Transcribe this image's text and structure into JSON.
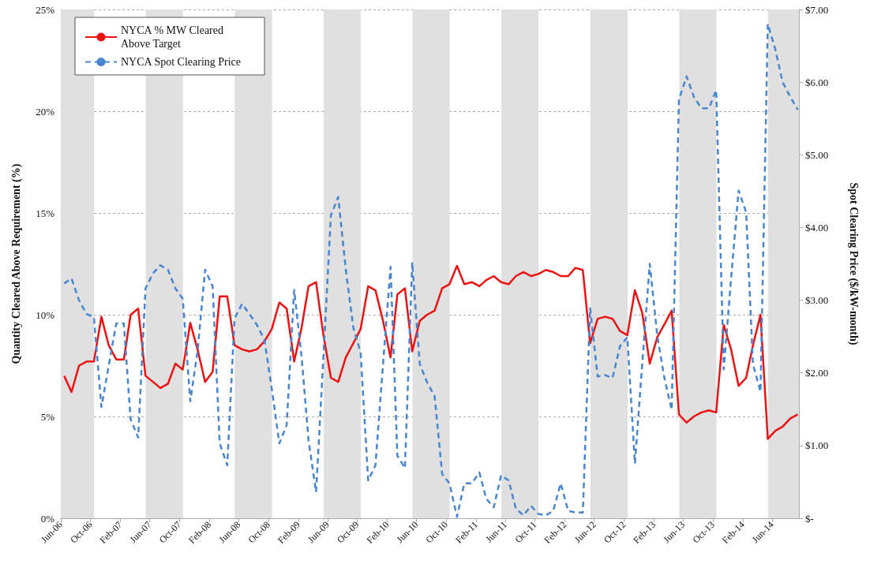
{
  "chart_data": {
    "type": "line",
    "ylabel": "Quantity Cleared Above Requirement (%)",
    "y2label": "Spot Clearing Price ($/kW-month)",
    "x": [
      "2006-06-15",
      "2006-07-15",
      "2006-08-15",
      "2006-09-15",
      "2006-10-15",
      "2006-11-15",
      "2006-12-15",
      "2007-01-15",
      "2007-02-15",
      "2007-03-15",
      "2007-04-15",
      "2007-05-15",
      "2007-06-15",
      "2007-07-15",
      "2007-08-15",
      "2007-09-15",
      "2007-10-15",
      "2007-11-15",
      "2007-12-15",
      "2008-01-15",
      "2008-02-15",
      "2008-03-15",
      "2008-04-15",
      "2008-05-15",
      "2008-06-15",
      "2008-07-15",
      "2008-08-15",
      "2008-09-15",
      "2008-10-15",
      "2008-11-15",
      "2008-12-15",
      "2009-01-15",
      "2009-02-15",
      "2009-03-15",
      "2009-04-15",
      "2009-05-15",
      "2009-06-15",
      "2009-07-15",
      "2009-08-15",
      "2009-09-15",
      "2009-10-15",
      "2009-11-15",
      "2009-12-15",
      "2010-01-15",
      "2010-02-15",
      "2010-03-15",
      "2010-04-15",
      "2010-05-15",
      "2010-06-15",
      "2010-07-15",
      "2010-08-15",
      "2010-09-15",
      "2010-10-15",
      "2010-11-15",
      "2010-12-15",
      "2011-01-15",
      "2011-02-15",
      "2011-03-15",
      "2011-04-15",
      "2011-05-15",
      "2011-06-15",
      "2011-07-15",
      "2011-08-15",
      "2011-09-15",
      "2011-10-15",
      "2011-11-15",
      "2011-12-15",
      "2012-01-15",
      "2012-02-15",
      "2012-03-15",
      "2012-04-15",
      "2012-05-15",
      "2012-06-15",
      "2012-07-15",
      "2012-08-15",
      "2012-09-15",
      "2012-10-15",
      "2012-11-15",
      "2012-12-15",
      "2013-01-15",
      "2013-02-15",
      "2013-03-15",
      "2013-04-15",
      "2013-05-15",
      "2013-06-15",
      "2013-07-15",
      "2013-08-15",
      "2013-09-15",
      "2013-10-15",
      "2013-11-15",
      "2013-12-15",
      "2014-01-15",
      "2014-02-15",
      "2014-03-15",
      "2014-04-15",
      "2014-05-15",
      "2014-06-15",
      "2014-07-15",
      "2014-08-15",
      "2014-09-15"
    ],
    "series": [
      {
        "name": "NYCA % MW Cleared Above Target",
        "color": "#ee1111",
        "line_style": "solid",
        "values": [
          7.0,
          6.2,
          7.5,
          7.7,
          7.7,
          9.9,
          8.5,
          7.8,
          7.8,
          10.0,
          10.3,
          7.0,
          6.7,
          6.4,
          6.6,
          7.6,
          7.3,
          9.6,
          8.3,
          6.7,
          7.2,
          10.9,
          10.9,
          8.5,
          8.3,
          8.2,
          8.3,
          8.7,
          9.3,
          10.6,
          10.3,
          7.7,
          9.4,
          11.4,
          11.6,
          9.0,
          6.9,
          6.7,
          7.9,
          8.6,
          9.3,
          11.4,
          11.2,
          9.7,
          7.9,
          11.0,
          11.3,
          8.2,
          9.7,
          10.0,
          10.2,
          11.3,
          11.5,
          12.4,
          11.5,
          11.6,
          11.4,
          11.7,
          11.9,
          11.6,
          11.5,
          11.9,
          12.1,
          11.9,
          12.0,
          12.2,
          12.1,
          11.9,
          11.9,
          12.3,
          12.2,
          8.6,
          9.8,
          9.9,
          9.8,
          9.2,
          9.0,
          11.2,
          10.1,
          7.6,
          8.9,
          9.5,
          10.2,
          5.1,
          4.7,
          5.0,
          5.2,
          5.3,
          5.2,
          9.5,
          8.3,
          6.5,
          6.9,
          8.5,
          10.0,
          3.9,
          4.3,
          4.5,
          4.9,
          5.1
        ]
      },
      {
        "name": "NYCA Spot Clearing Price",
        "color": "#4a86d0",
        "line_style": "dashed",
        "axis": "y2",
        "values": [
          3.23,
          3.3,
          3.0,
          2.81,
          2.77,
          1.53,
          2.1,
          2.68,
          2.68,
          1.36,
          1.11,
          3.16,
          3.37,
          3.48,
          3.42,
          3.16,
          3.02,
          1.61,
          2.3,
          3.42,
          3.19,
          1.03,
          0.73,
          2.75,
          2.95,
          2.81,
          2.66,
          2.45,
          1.78,
          1.03,
          1.28,
          3.14,
          2.2,
          1.07,
          0.36,
          2.22,
          4.17,
          4.42,
          3.42,
          2.62,
          2.28,
          0.52,
          0.73,
          2.12,
          3.46,
          0.86,
          0.69,
          3.52,
          2.12,
          1.87,
          1.68,
          0.61,
          0.48,
          0.02,
          0.48,
          0.48,
          0.63,
          0.27,
          0.15,
          0.59,
          0.52,
          0.13,
          0.04,
          0.17,
          0.06,
          0.04,
          0.1,
          0.48,
          0.1,
          0.08,
          0.08,
          2.89,
          1.95,
          1.97,
          1.93,
          2.37,
          2.49,
          0.75,
          2.12,
          3.5,
          2.51,
          1.95,
          1.49,
          5.76,
          6.08,
          5.8,
          5.64,
          5.64,
          5.89,
          2.05,
          3.29,
          4.51,
          4.21,
          2.12,
          1.74,
          6.8,
          6.45,
          6.0,
          5.8,
          5.62
        ]
      }
    ],
    "xlim": [
      "2006-06-01",
      "2014-09-20"
    ],
    "xticks": [
      {
        "value": "2006-06-01",
        "label": "Jun-06"
      },
      {
        "value": "2006-10-01",
        "label": "Oct-06"
      },
      {
        "value": "2007-02-01",
        "label": "Feb-07"
      },
      {
        "value": "2007-06-01",
        "label": "Jun-07"
      },
      {
        "value": "2007-10-01",
        "label": "Oct-07"
      },
      {
        "value": "2008-02-01",
        "label": "Feb-08"
      },
      {
        "value": "2008-06-01",
        "label": "Jun-08"
      },
      {
        "value": "2008-10-01",
        "label": "Oct-08"
      },
      {
        "value": "2009-02-01",
        "label": "Feb-09"
      },
      {
        "value": "2009-06-01",
        "label": "Jun-09"
      },
      {
        "value": "2009-10-01",
        "label": "Oct-09"
      },
      {
        "value": "2010-02-01",
        "label": "Feb-10"
      },
      {
        "value": "2010-06-01",
        "label": "Jun-10"
      },
      {
        "value": "2010-10-01",
        "label": "Oct-10"
      },
      {
        "value": "2011-02-01",
        "label": "Feb-11"
      },
      {
        "value": "2011-06-01",
        "label": "Jun-11"
      },
      {
        "value": "2011-10-01",
        "label": "Oct-11"
      },
      {
        "value": "2012-02-01",
        "label": "Feb-12"
      },
      {
        "value": "2012-06-01",
        "label": "Jun-12"
      },
      {
        "value": "2012-10-01",
        "label": "Oct-12"
      },
      {
        "value": "2013-02-01",
        "label": "Feb-13"
      },
      {
        "value": "2013-06-01",
        "label": "Jun-13"
      },
      {
        "value": "2013-10-01",
        "label": "Oct-13"
      },
      {
        "value": "2014-02-01",
        "label": "Feb-14"
      },
      {
        "value": "2014-06-01",
        "label": "Jun-14"
      }
    ],
    "ylim": [
      0,
      25
    ],
    "yticks": [
      {
        "value": 0,
        "label": "0%"
      },
      {
        "value": 5,
        "label": "5%"
      },
      {
        "value": 10,
        "label": "10%"
      },
      {
        "value": 15,
        "label": "15%"
      },
      {
        "value": 20,
        "label": "20%"
      },
      {
        "value": 25,
        "label": "25%"
      }
    ],
    "y2lim": [
      0,
      7
    ],
    "y2ticks": [
      {
        "value": 0,
        "label": "$-"
      },
      {
        "value": 1,
        "label": "$1.00"
      },
      {
        "value": 2,
        "label": "$2.00"
      },
      {
        "value": 3,
        "label": "$3.00"
      },
      {
        "value": 4,
        "label": "$4.00"
      },
      {
        "value": 5,
        "label": "$5.00"
      },
      {
        "value": 6,
        "label": "$6.00"
      },
      {
        "value": 7,
        "label": "$7.00"
      }
    ],
    "bands": [
      {
        "axis": "x",
        "from": "2006-06-01",
        "to": "2006-10-16",
        "color": "#e0e0e0"
      },
      {
        "axis": "x",
        "from": "2007-05-16",
        "to": "2007-10-16",
        "color": "#e0e0e0"
      },
      {
        "axis": "x",
        "from": "2008-05-16",
        "to": "2008-10-16",
        "color": "#e0e0e0"
      },
      {
        "axis": "x",
        "from": "2009-05-16",
        "to": "2009-10-16",
        "color": "#e0e0e0"
      },
      {
        "axis": "x",
        "from": "2010-05-16",
        "to": "2010-10-16",
        "color": "#e0e0e0"
      },
      {
        "axis": "x",
        "from": "2011-05-16",
        "to": "2011-10-16",
        "color": "#e0e0e0"
      },
      {
        "axis": "x",
        "from": "2012-05-16",
        "to": "2012-10-16",
        "color": "#e0e0e0"
      },
      {
        "axis": "x",
        "from": "2013-05-16",
        "to": "2013-10-16",
        "color": "#e0e0e0"
      },
      {
        "axis": "x",
        "from": "2014-05-16",
        "to": "2014-09-20",
        "color": "#e0e0e0"
      }
    ],
    "grid": "y",
    "legend": "top left",
    "marker": "none"
  }
}
